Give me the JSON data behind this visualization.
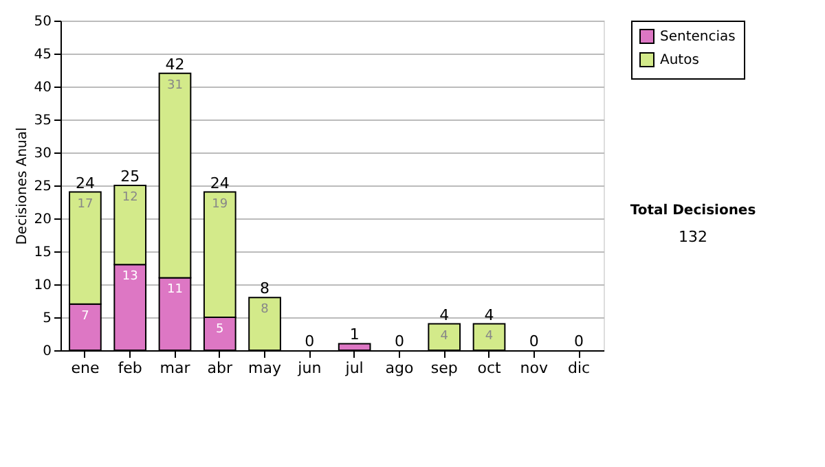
{
  "chart_data": {
    "type": "bar",
    "stacked": true,
    "ylabel": "Decisiones Anual",
    "categories": [
      "ene",
      "feb",
      "mar",
      "abr",
      "may",
      "jun",
      "jul",
      "ago",
      "sep",
      "oct",
      "nov",
      "dic"
    ],
    "series": [
      {
        "name": "Sentencias",
        "color": "#dd77c4",
        "values": [
          7,
          13,
          11,
          5,
          0,
          0,
          1,
          0,
          0,
          0,
          0,
          0
        ],
        "value_labels": [
          "7",
          "13",
          "11",
          "5",
          null,
          null,
          null,
          null,
          null,
          null,
          null,
          null
        ]
      },
      {
        "name": "Autos",
        "color": "#d3ea8a",
        "values": [
          17,
          12,
          31,
          19,
          8,
          0,
          0,
          0,
          4,
          4,
          0,
          0
        ],
        "value_labels": [
          "17",
          "12",
          "31",
          "19",
          "8",
          null,
          null,
          null,
          "4",
          "4",
          null,
          null
        ]
      }
    ],
    "totals": [
      "24",
      "25",
      "42",
      "24",
      "8",
      "0",
      "1",
      "0",
      "4",
      "4",
      "0",
      "0"
    ],
    "ylim": [
      0,
      50
    ],
    "yticks": [
      0,
      5,
      10,
      15,
      20,
      25,
      30,
      35,
      40,
      45,
      50
    ],
    "grid": "y",
    "legend": "top right",
    "annotations": [
      "Total Decisiones",
      "132"
    ]
  }
}
